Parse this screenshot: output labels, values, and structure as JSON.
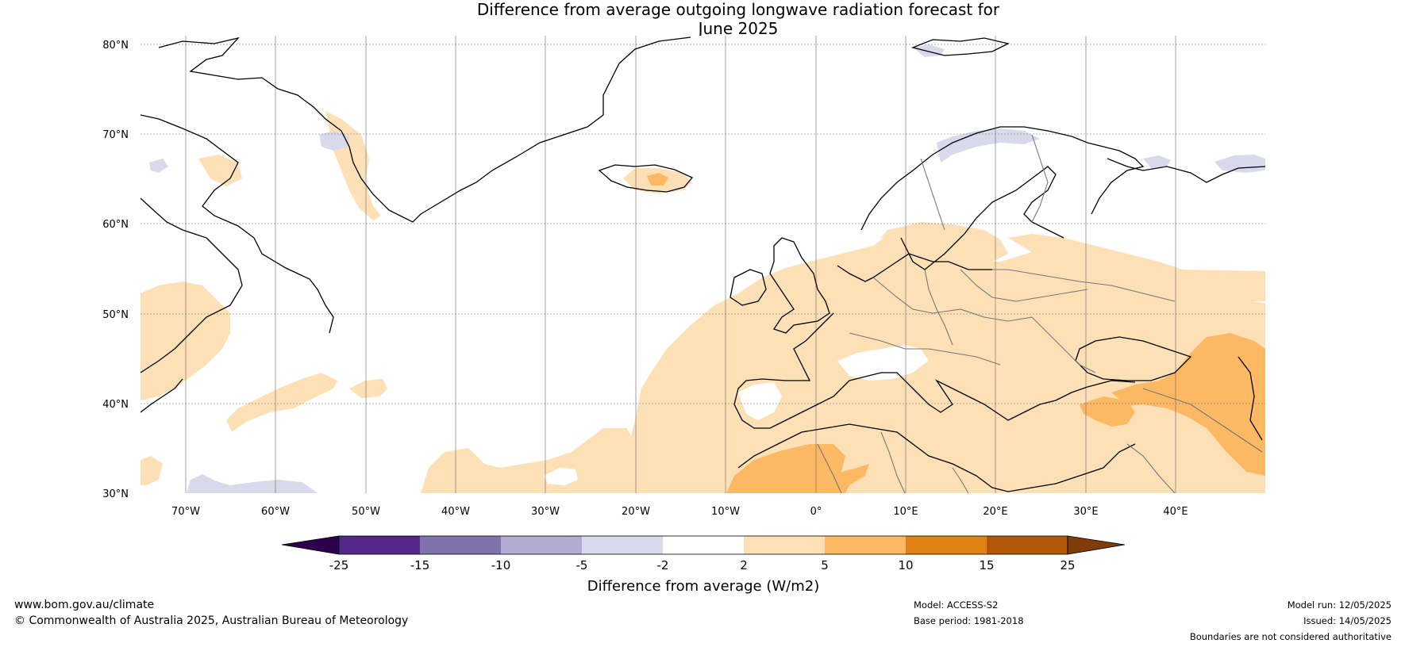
{
  "title_line1": "Difference from average outgoing longwave radiation forecast for",
  "title_line2": "June 2025",
  "lat_labels": [
    "80°N",
    "70°N",
    "60°N",
    "50°N",
    "40°N",
    "30°N"
  ],
  "lon_labels": [
    "70°W",
    "60°W",
    "50°W",
    "40°W",
    "30°W",
    "20°W",
    "10°W",
    "0°",
    "10°E",
    "20°E",
    "30°E",
    "40°E"
  ],
  "colorbar": {
    "title": "Difference from average (W/m2)",
    "tick_labels": [
      "-25",
      "-15",
      "-10",
      "-5",
      "-2",
      "2",
      "5",
      "10",
      "15",
      "25"
    ],
    "colors": {
      "below_min": "#2d004b",
      "bin_-25_-15": "#542788",
      "bin_-15_-10": "#8073ac",
      "bin_-10_-5": "#b2abd2",
      "bin_-5_-2": "#d8daeb",
      "bin_-2_2": "#ffffff",
      "bin_2_5": "#fee0b6",
      "bin_5_10": "#fdb863",
      "bin_10_15": "#e08214",
      "bin_15_25": "#b35806",
      "above_max": "#7f3b08"
    }
  },
  "footer": {
    "website": "www.bom.gov.au/climate",
    "copyright": "© Commonwealth of Australia 2025, Australian Bureau of Meteorology",
    "model": "Model: ACCESS-S2",
    "base_period": "Base period: 1981-2018",
    "model_run": "Model run: 12/05/2025",
    "issued": "Issued: 14/05/2025",
    "disclaimer": "Boundaries are not considered authoritative"
  }
}
